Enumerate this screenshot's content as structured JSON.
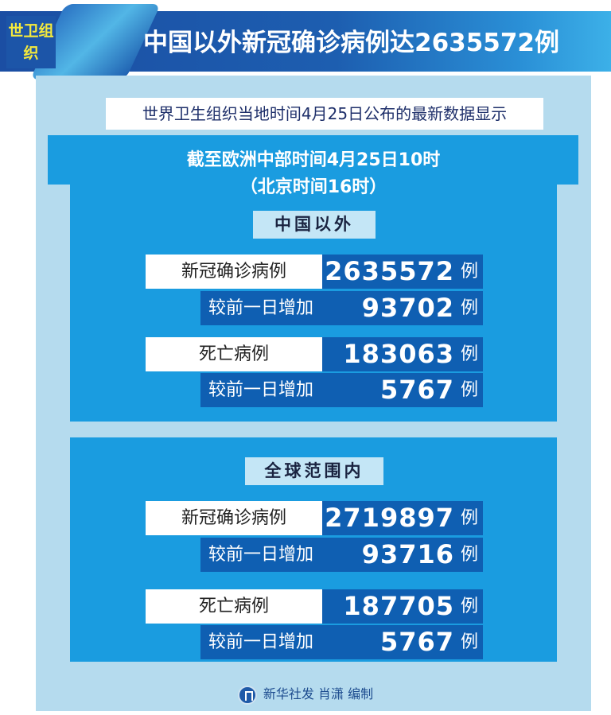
{
  "header": {
    "tag": "世卫组织",
    "title": "中国以外新冠确诊病例达2635572例"
  },
  "subtitle": "世界卫生组织当地时间4月25日公布的最新数据显示",
  "time": {
    "line1": "截至欧洲中部时间4月25日10时",
    "line2": "（北京时间16时）"
  },
  "sections": [
    {
      "label": "中国以外",
      "rows": [
        {
          "label": "新冠确诊病例",
          "value": "2635572",
          "unit": "例",
          "sub_label": "较前一日增加",
          "sub_value": "93702",
          "sub_unit": "例"
        },
        {
          "label": "死亡病例",
          "value": "183063",
          "unit": "例",
          "sub_label": "较前一日增加",
          "sub_value": "5767",
          "sub_unit": "例"
        }
      ]
    },
    {
      "label": "全球范围内",
      "rows": [
        {
          "label": "新冠确诊病例",
          "value": "2719897",
          "unit": "例",
          "sub_label": "较前一日增加",
          "sub_value": "93716",
          "sub_unit": "例"
        },
        {
          "label": "死亡病例",
          "value": "187705",
          "unit": "例",
          "sub_label": "较前一日增加",
          "sub_value": "5767",
          "sub_unit": "例"
        }
      ]
    }
  ],
  "footer": {
    "credit": "新华社发 肖潇 编制",
    "logo": "xinhua-logo"
  },
  "colors": {
    "header": "#1b4ea3",
    "section": "#1a9ce0",
    "value_box": "#0f5fb2",
    "panel": "#b5dbee",
    "tag_text": "#f5ea3c"
  }
}
